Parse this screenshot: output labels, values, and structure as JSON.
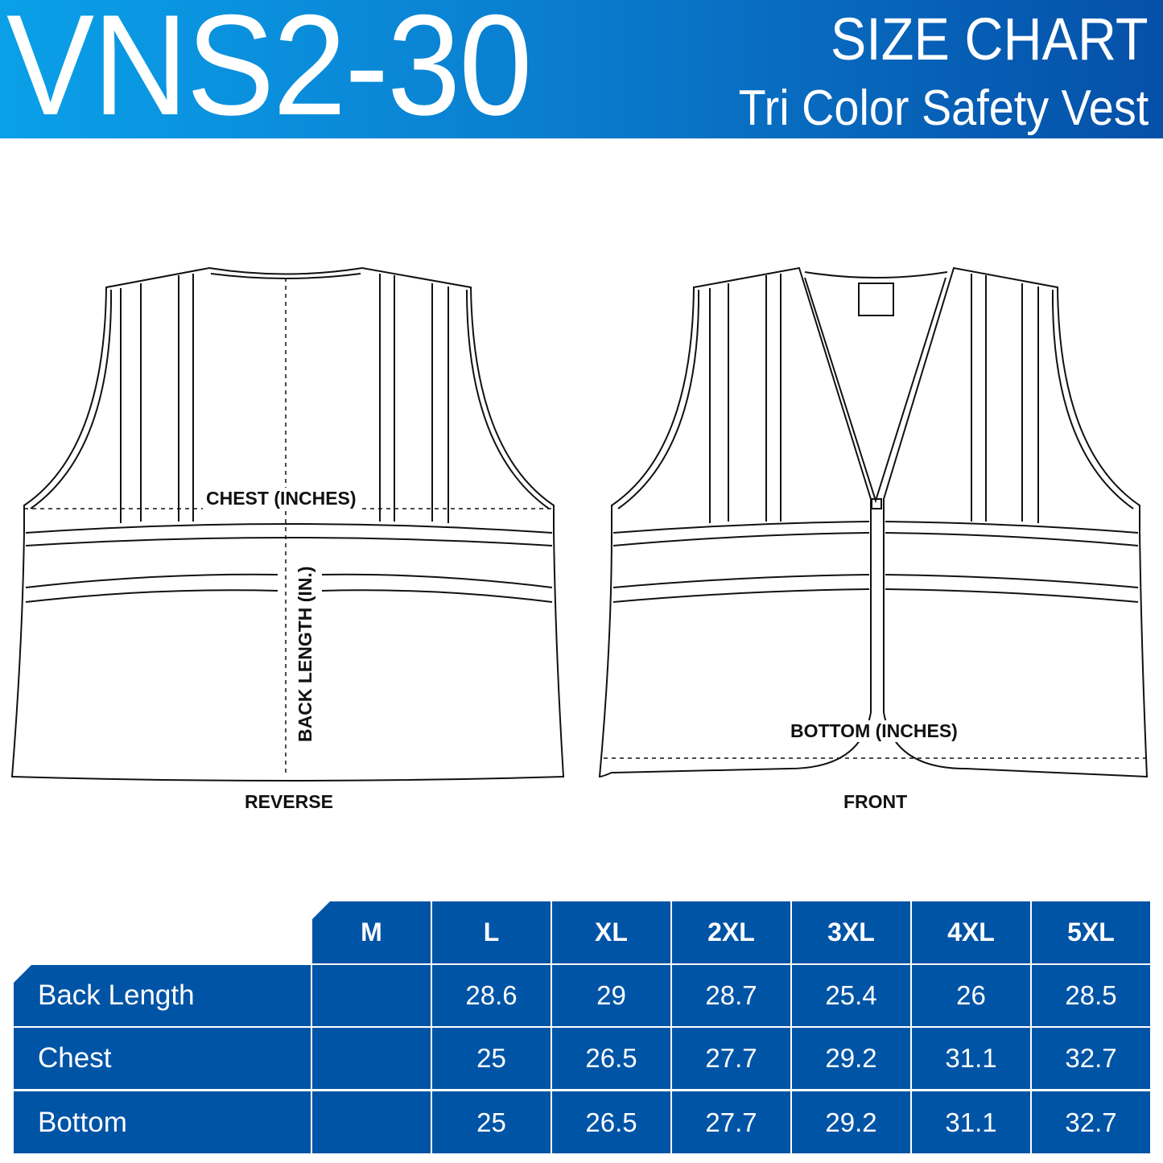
{
  "header": {
    "model": "VNS2-30",
    "title": "SIZE CHART",
    "subtitle": "Tri Color Safety Vest"
  },
  "diagram": {
    "chest": "CHEST (INCHES)",
    "back_length": "BACK LENGTH (IN.)",
    "bottom": "BOTTOM (INCHES)",
    "reverse": "REVERSE",
    "front": "FRONT"
  },
  "table": {
    "sizes": [
      "M",
      "L",
      "XL",
      "2XL",
      "3XL",
      "4XL",
      "5XL"
    ],
    "rows": [
      {
        "label": "Back Length",
        "values": [
          "",
          "28.6",
          "29",
          "28.7",
          "25.4",
          "26",
          "28.5"
        ]
      },
      {
        "label": "Chest",
        "values": [
          "",
          "25",
          "26.5",
          "27.7",
          "29.2",
          "31.1",
          "32.7"
        ]
      },
      {
        "label": "Bottom",
        "values": [
          "",
          "25",
          "26.5",
          "27.7",
          "29.2",
          "31.1",
          "32.7"
        ]
      }
    ]
  },
  "colors": {
    "table_blue": "#0054a6",
    "header_start": "#0aa0e8",
    "header_end": "#0550a8"
  }
}
